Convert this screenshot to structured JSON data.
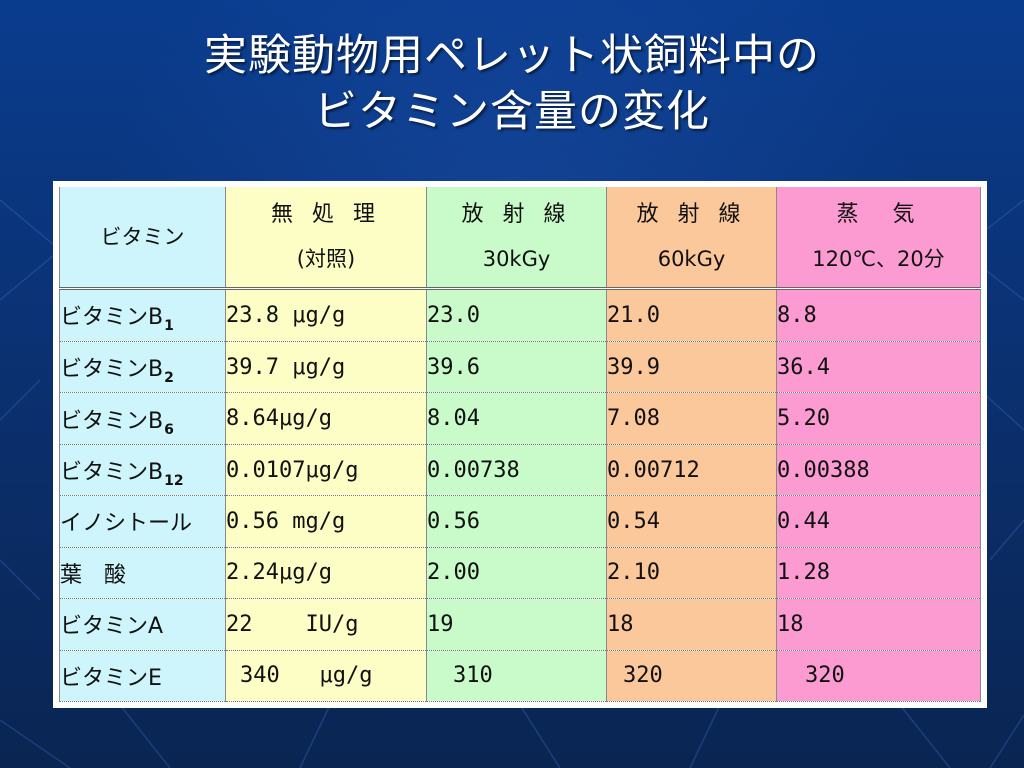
{
  "title": {
    "line1": "実験動物用ペレット状飼料中の",
    "line2": "ビタミン含量の変化"
  },
  "table": {
    "header": {
      "col0": "ビタミン",
      "col1": {
        "line1": "無 処 理",
        "line2": "(対照)"
      },
      "col2": {
        "line1": "放 射 線",
        "line2": "30kGy"
      },
      "col3": {
        "line1": "放 射 線",
        "line2": "60kGy"
      },
      "col4": {
        "line1": "蒸　気",
        "line2": "120℃、20分"
      }
    },
    "colors": {
      "vitamin_column": "#cdf5fb",
      "untreated_column": "#fdfdc6",
      "radiation_30_column": "#c9fac9",
      "radiation_60_column": "#fbc89c",
      "steam_column": "#fb9bd2"
    },
    "rows": [
      {
        "name": "ビタミンB",
        "sub": "1",
        "raw": "23.8 μg/g",
        "r30": "23.0",
        "r60": "21.0",
        "steam": "8.8"
      },
      {
        "name": "ビタミンB",
        "sub": "2",
        "raw": "39.7 μg/g",
        "r30": "39.6",
        "r60": "39.9",
        "steam": "36.4"
      },
      {
        "name": "ビタミンB",
        "sub": "6",
        "raw": "8.64μg/g",
        "r30": "8.04",
        "r60": "7.08",
        "steam": "5.20"
      },
      {
        "name": "ビタミンB",
        "sub": "12",
        "raw": "0.0107μg/g",
        "r30": "0.00738",
        "r60": "0.00712",
        "steam": "0.00388"
      },
      {
        "name": "イノシトール",
        "sub": "",
        "raw": "0.56 mg/g",
        "r30": "0.56",
        "r60": "0.54",
        "steam": "0.44"
      },
      {
        "name": "葉　酸",
        "sub": "",
        "raw": "2.24μg/g",
        "r30": "2.00",
        "r60": "2.10",
        "steam": "1.28"
      },
      {
        "name": "ビタミンA",
        "sub": "",
        "raw": "22    IU/g",
        "r30": "19",
        "r60": "18",
        "steam": "18"
      },
      {
        "name": "ビタミンE",
        "sub": "",
        "raw": "340   μg/g",
        "r30": "310",
        "r60": "320",
        "steam": "320"
      }
    ]
  }
}
